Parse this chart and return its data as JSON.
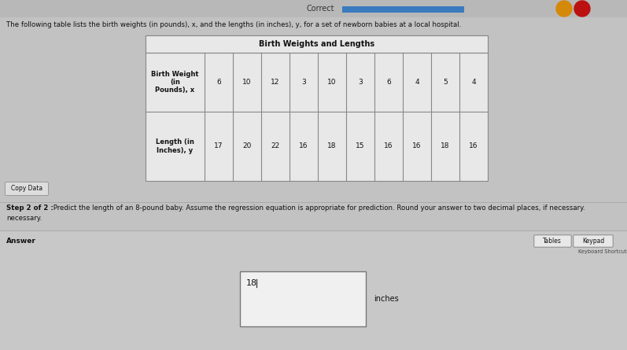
{
  "bg_color": "#c2c2c2",
  "correct_label": "Correct",
  "correct_bar_color": "#3a7abf",
  "header_text": "The following table lists the birth weights (in pounds), x, and the lengths (in inches), y, for a set of newborn babies at a local hospital.",
  "table_title": "Birth Weights and Lengths",
  "row1_label": "Birth Weight\n(in\nPounds), x",
  "row2_label": "Length (in\nInches), y",
  "birth_weights": [
    6,
    10,
    12,
    3,
    10,
    3,
    6,
    4,
    5,
    4
  ],
  "lengths": [
    17,
    20,
    22,
    16,
    18,
    15,
    16,
    16,
    18,
    16
  ],
  "copy_data_label": "Copy Data",
  "step_bold": "Step 2 of 2 :",
  "step_text": " Predict the length of an 8-pound baby. Assume the regression equation is appropriate for prediction. Round your answer to two decimal places, if necessary.",
  "answer_label": "Answer",
  "tables_btn": "Tables",
  "keypad_btn": "Keypad",
  "keyboard_shortcuts": "Keyboard Shortcuts",
  "answer_value": "18",
  "answer_unit": "inches",
  "input_box_color": "#f0f0f0",
  "table_bg": "#e8e8e8",
  "table_header_bg": "#d8d8d8",
  "table_border": "#888888",
  "divider_color": "#aaaaaa",
  "top_bar_bg": "#b8b8b8",
  "answer_section_bg": "#c8c8c8"
}
